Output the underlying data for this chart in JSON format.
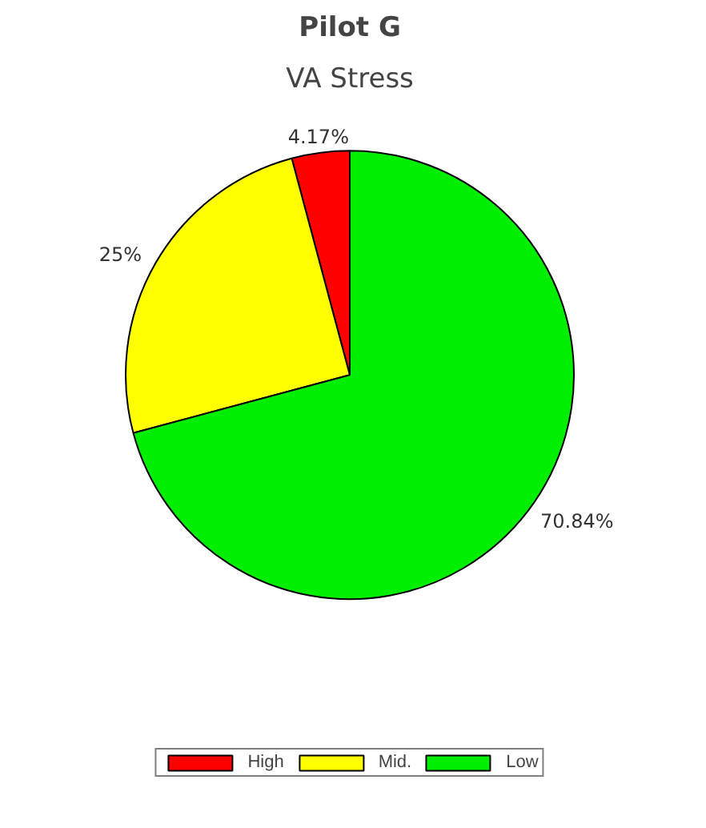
{
  "chart_data": {
    "type": "pie",
    "title": "Pilot G",
    "subtitle": "VA Stress",
    "categories": [
      "High",
      "Mid.",
      "Low"
    ],
    "values": [
      4.17,
      25,
      70.84
    ],
    "colors": [
      "#ff0000",
      "#ffff00",
      "#00ee00"
    ],
    "value_labels": [
      "4.17%",
      "25%",
      "70.84%"
    ],
    "legend": "bottom"
  }
}
